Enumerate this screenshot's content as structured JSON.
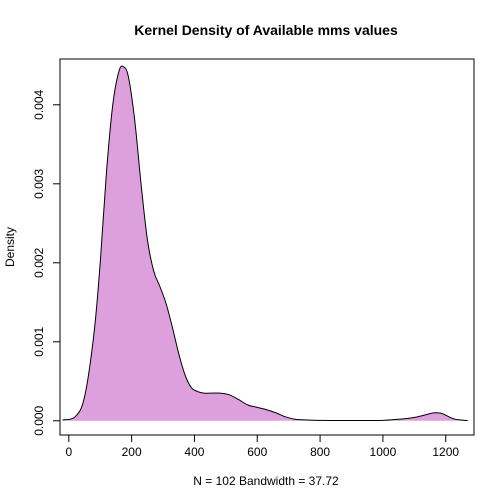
{
  "chart_data": {
    "type": "area",
    "title": "Kernel Density of Available mms values",
    "xlabel": "N = 102   Bandwidth = 37.72",
    "ylabel": "Density",
    "xlim": [
      -28,
      1290
    ],
    "ylim": [
      -0.00018,
      0.00458
    ],
    "x_ticks": [
      0,
      200,
      400,
      600,
      800,
      1000,
      1200
    ],
    "x_tick_labels": [
      "0",
      "200",
      "400",
      "600",
      "800",
      "1000",
      "1200"
    ],
    "y_ticks": [
      0,
      0.001,
      0.002,
      0.003,
      0.004
    ],
    "y_tick_labels": [
      "0.000",
      "0.001",
      "0.002",
      "0.003",
      "0.004"
    ],
    "grid": false,
    "fill_color": "#dda0dd",
    "line_color": "#000000",
    "series": [
      {
        "x": [
          -20,
          20,
          50,
          80,
          100,
          120,
          140,
          160,
          175,
          190,
          210,
          230,
          250,
          270,
          290,
          310,
          330,
          350,
          370,
          390,
          410,
          430,
          450,
          480,
          510,
          540,
          570,
          600,
          630,
          660,
          690,
          720,
          760,
          800,
          850,
          900,
          950,
          1000,
          1050,
          1080,
          1110,
          1140,
          1160,
          1175,
          1190,
          1210,
          1230,
          1250,
          1270
        ],
        "y": [
          1e-05,
          5e-05,
          0.0003,
          0.0011,
          0.002,
          0.00315,
          0.004,
          0.00443,
          0.00448,
          0.00435,
          0.0038,
          0.003,
          0.0023,
          0.0019,
          0.0017,
          0.00148,
          0.00118,
          0.00085,
          0.00058,
          0.00042,
          0.00037,
          0.00035,
          0.00035,
          0.00035,
          0.00033,
          0.00027,
          0.0002,
          0.00017,
          0.00014,
          0.0001,
          5e-05,
          2e-05,
          1e-05,
          5e-06,
          3e-06,
          3e-06,
          3e-06,
          5e-06,
          2e-05,
          3e-05,
          5e-05,
          8e-05,
          0.0001,
          0.0001,
          9e-05,
          5e-05,
          2e-05,
          1e-05,
          3e-06
        ]
      }
    ]
  }
}
